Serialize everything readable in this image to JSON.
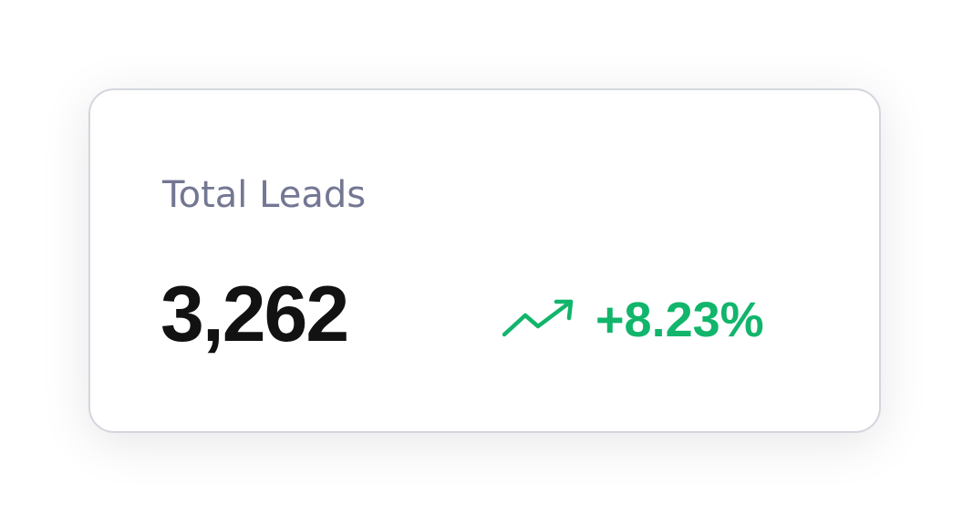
{
  "card": {
    "title": "Total Leads",
    "value": "3,262",
    "trend": {
      "icon": "trending-up-icon",
      "change": "+8.23%",
      "color": "#11b56b"
    }
  }
}
